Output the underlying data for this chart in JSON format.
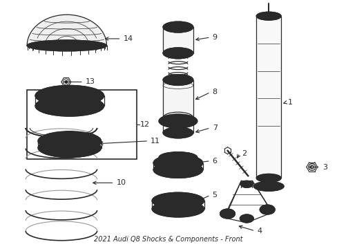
{
  "title": "2021 Audi Q8 Shocks & Components - Front",
  "bg_color": "#ffffff",
  "line_color": "#2a2a2a",
  "fig_width": 4.89,
  "fig_height": 3.6,
  "dpi": 100
}
